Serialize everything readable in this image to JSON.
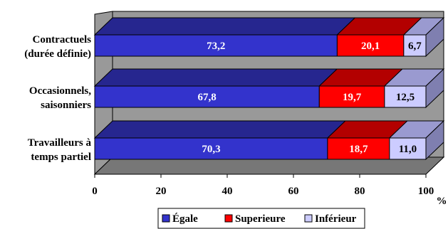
{
  "chart_data": {
    "type": "bar",
    "orientation": "horizontal",
    "stacked": true,
    "three_d": true,
    "categories": [
      [
        "Contractuels",
        "(durée définie)"
      ],
      [
        "Occasionnels,",
        "saisonniers"
      ],
      [
        "Travailleurs à",
        "temps partiel"
      ]
    ],
    "series": [
      {
        "name": "Égale",
        "color": "#3333cc",
        "values": [
          73.2,
          67.8,
          70.3
        ],
        "labels": [
          "73,2",
          "67,8",
          "70,3"
        ]
      },
      {
        "name": "Superieure",
        "color": "#ff0000",
        "values": [
          20.1,
          19.7,
          18.7
        ],
        "labels": [
          "20,1",
          "19,7",
          "18,7"
        ]
      },
      {
        "name": "Inférieur",
        "color": "#ccccff",
        "values": [
          6.7,
          12.5,
          11.0
        ],
        "labels": [
          "6,7",
          "12,5",
          "11,0"
        ]
      }
    ],
    "xlim": [
      0,
      100
    ],
    "xticks": [
      0,
      20,
      40,
      60,
      80,
      100
    ],
    "tick_labels": [
      "0",
      "20",
      "40",
      "60",
      "80",
      "100"
    ],
    "xlabel": "%",
    "walls_color": "#999999",
    "legend_position": "bottom",
    "grid": false
  }
}
